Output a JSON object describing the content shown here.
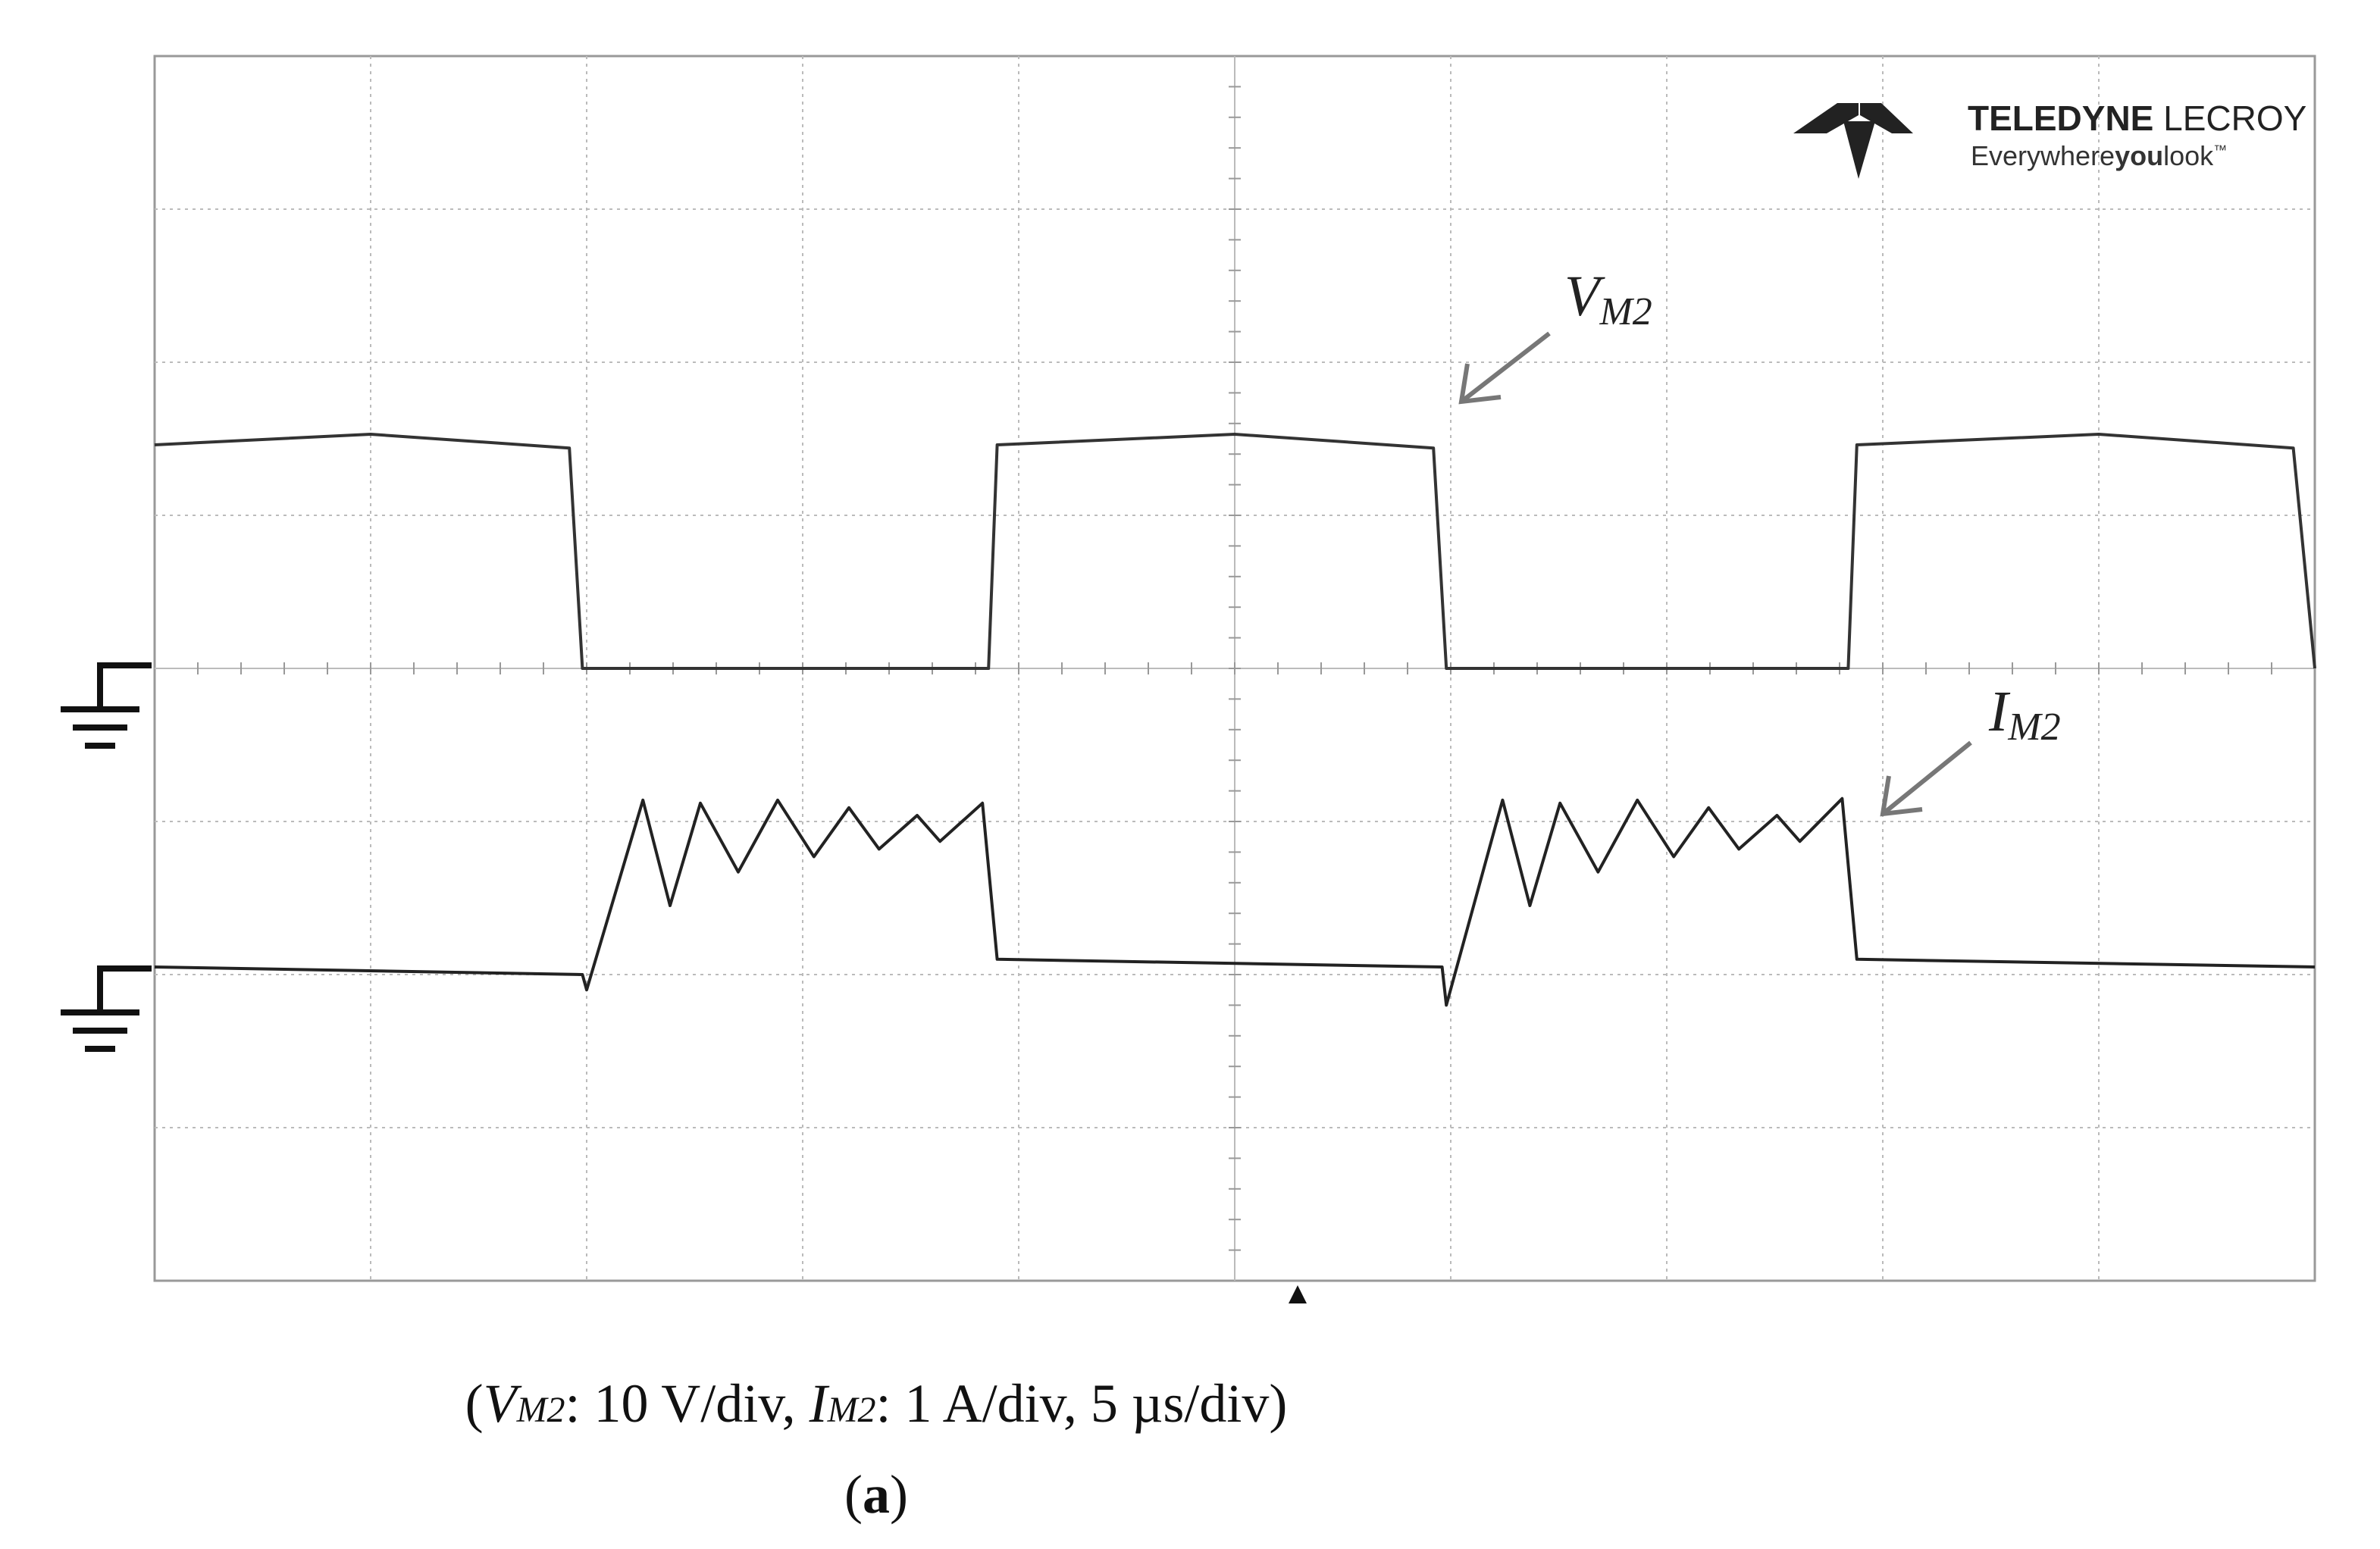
{
  "chart_data": {
    "type": "line",
    "xlim": [
      0,
      50
    ],
    "ylim": [
      -40,
      40
    ],
    "y2lim": [
      -2,
      6
    ],
    "grid": true,
    "series": [
      {
        "label": {
          "main": "V",
          "sub": "M2"
        },
        "color": "#333333",
        "x": [
          0,
          5,
          9.6,
          9.9,
          19.3,
          19.5,
          25,
          29.6,
          29.9,
          39.2,
          39.4,
          45,
          49.5,
          50
        ],
        "values": [
          14.6,
          15.3,
          14.4,
          0,
          0,
          14.6,
          15.3,
          14.4,
          0,
          0,
          14.6,
          15.3,
          14.4,
          0
        ]
      },
      {
        "label": {
          "main": "I",
          "sub": "M2"
        },
        "color": "#222222",
        "axis": "y2",
        "x": [
          0,
          9.9,
          10.0,
          11.3,
          11.93,
          12.63,
          13.51,
          14.42,
          15.26,
          16.07,
          16.77,
          17.65,
          18.18,
          19.16,
          19.5,
          29.8,
          29.9,
          31.2,
          31.83,
          32.53,
          33.41,
          34.32,
          35.16,
          35.97,
          36.67,
          37.55,
          38.08,
          39.06,
          39.4,
          50
        ],
        "values": [
          0.05,
          0,
          -0.1,
          1.14,
          0.45,
          1.12,
          0.67,
          1.14,
          0.77,
          1.09,
          0.82,
          1.04,
          0.87,
          1.12,
          0.1,
          0.05,
          -0.2,
          1.14,
          0.45,
          1.12,
          0.67,
          1.14,
          0.77,
          1.09,
          0.82,
          1.04,
          0.87,
          1.15,
          0.1,
          0.05
        ]
      }
    ],
    "logo": {
      "brand_bold": "TELEDYNE",
      "brand": "LECROY",
      "tag_a": "Everywhere",
      "tag_b": "you",
      "tag_c": "look",
      "tm": "™"
    },
    "caption": [
      {
        "text": "(",
        "italic": false,
        "sub": false
      },
      {
        "text": "V",
        "italic": true,
        "sub": false
      },
      {
        "text": "M2",
        "italic": true,
        "sub": true
      },
      {
        "text": ": 10 V/div, ",
        "italic": false,
        "sub": false
      },
      {
        "text": "I",
        "italic": true,
        "sub": false
      },
      {
        "text": "M2",
        "italic": true,
        "sub": true
      },
      {
        "text": ": 1 A/div, 5 µs/div)",
        "italic": false,
        "sub": false
      }
    ],
    "panel": {
      "open": "(",
      "letter": "a",
      "close": ")"
    }
  }
}
